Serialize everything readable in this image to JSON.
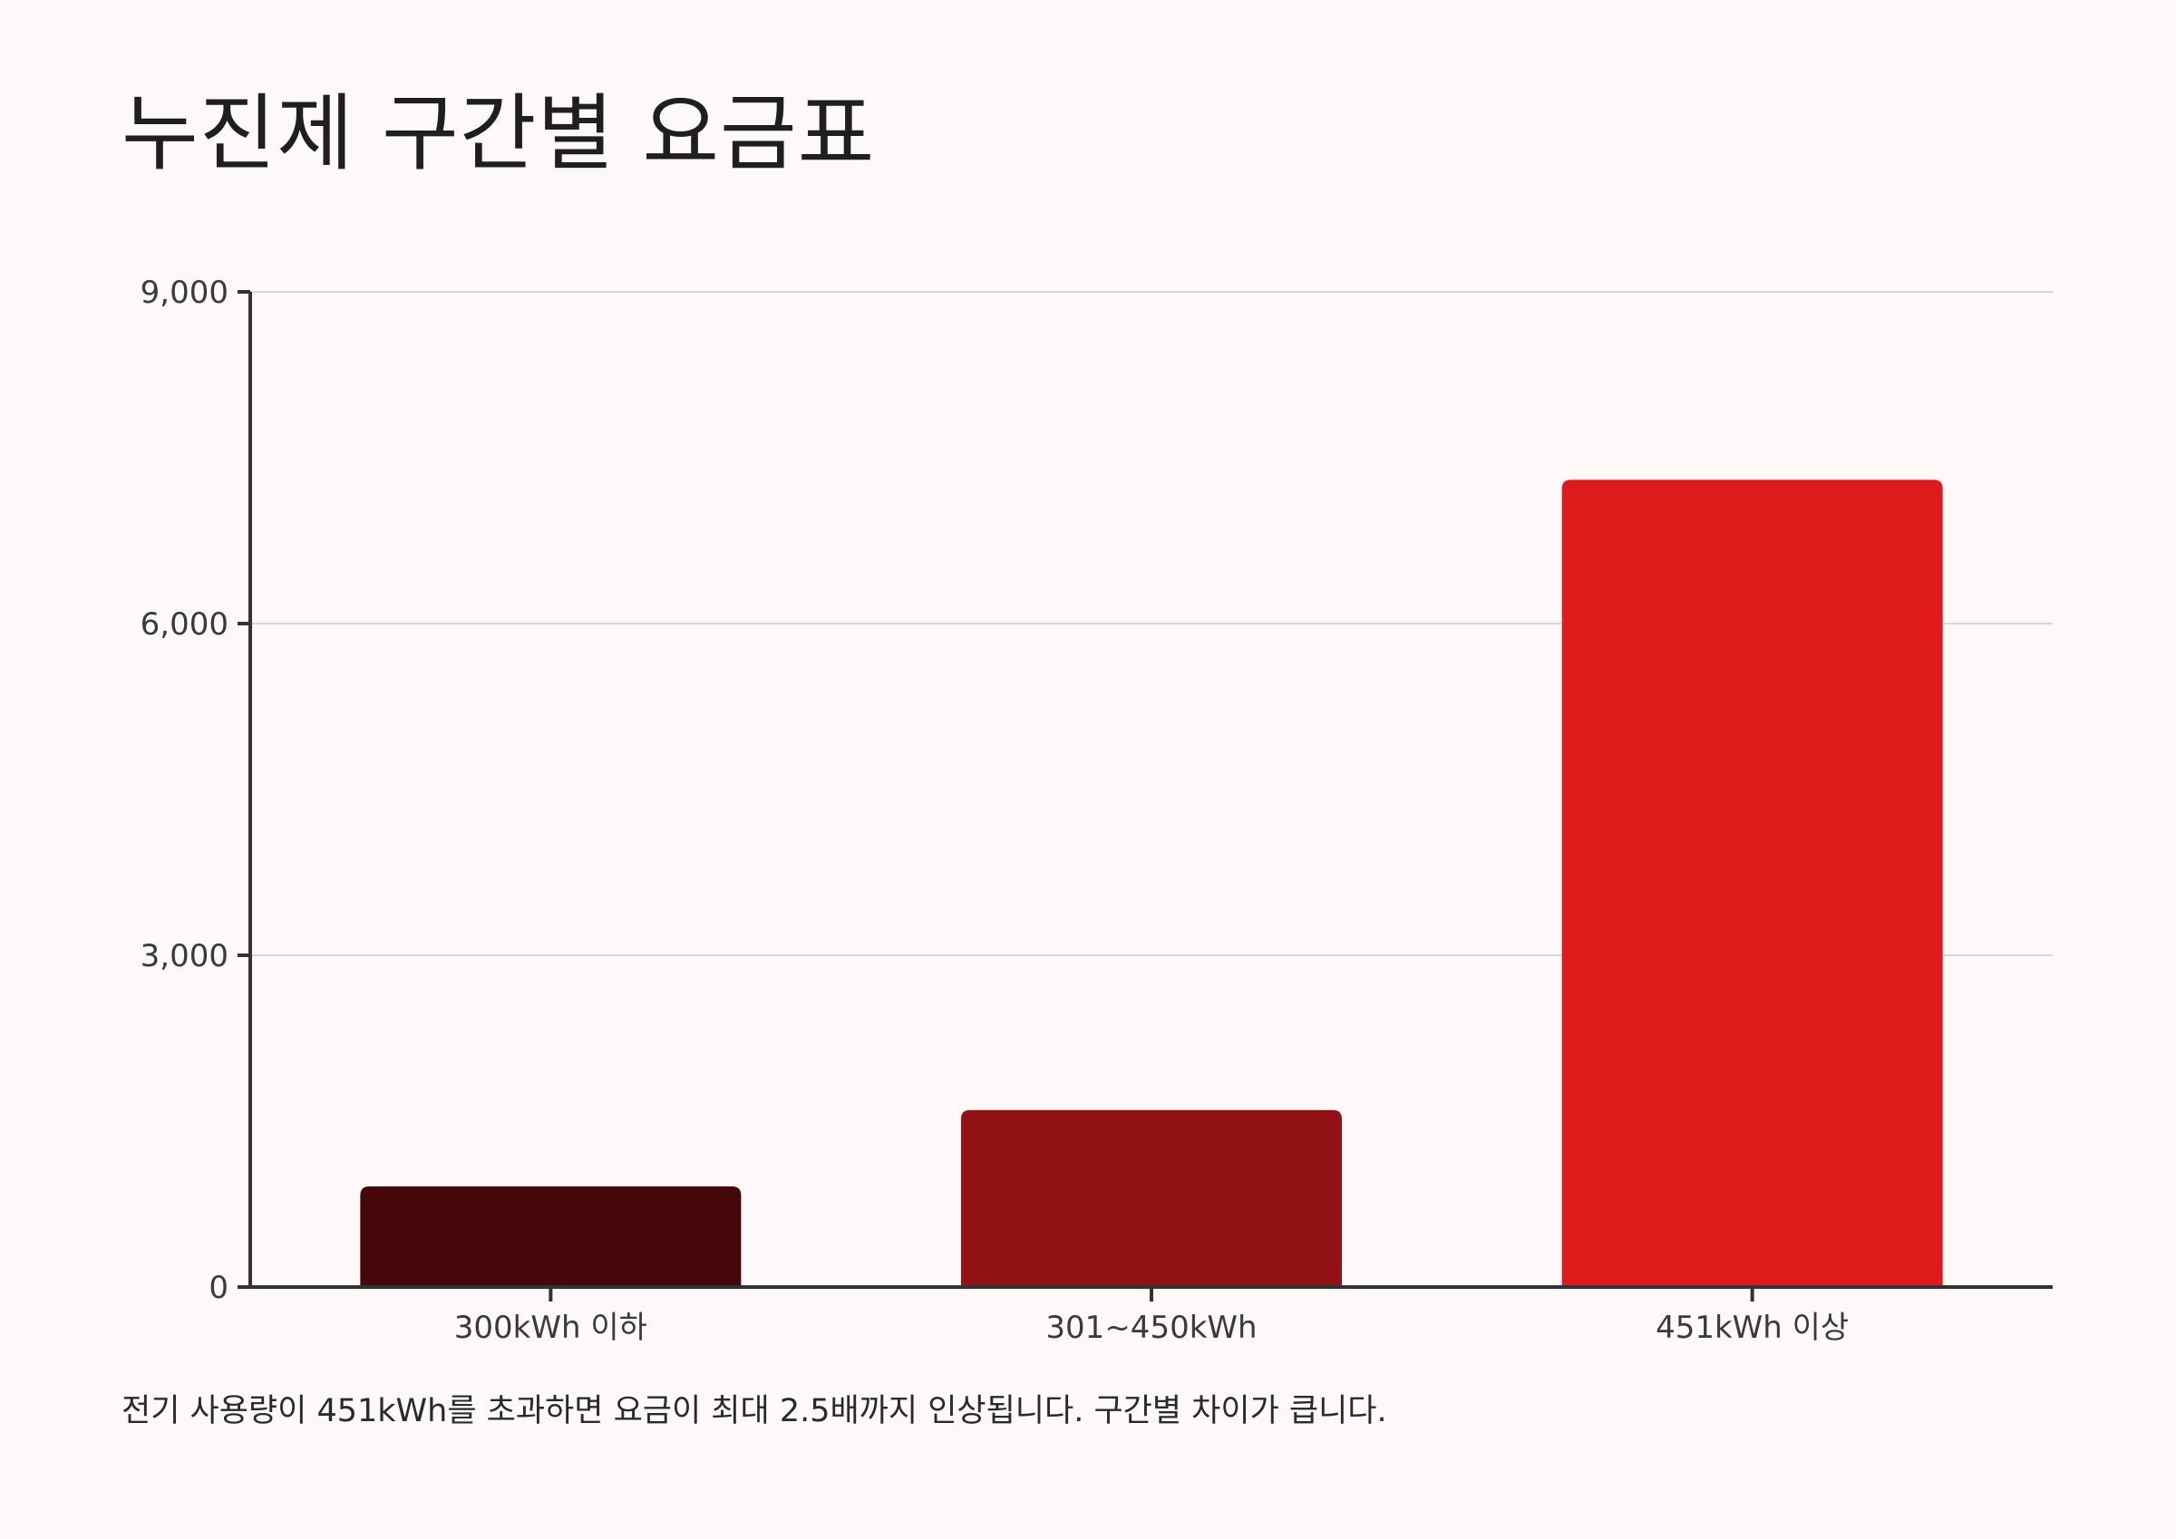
{
  "page": {
    "title": "누진제 구간별 요금표",
    "caption": "전기 사용량이 451kWh를 초과하면 요금이 최대 2.5배까지 인상됩니다. 구간별 차이가 큽니다."
  },
  "colors": {
    "background": "#fcf9f8",
    "axis": "#333333",
    "grid": "#d6d6d6",
    "bars": [
      "#450709",
      "#921115",
      "#df1a1a"
    ]
  },
  "chart_data": {
    "type": "bar",
    "title": "누진제 구간별 요금표",
    "xlabel": "",
    "ylabel": "",
    "categories": [
      "300kWh 이하",
      "301~450kWh",
      "451kWh 이상"
    ],
    "values": [
      910,
      1600,
      7300
    ],
    "ylim": [
      0,
      9000
    ],
    "yticks": [
      0,
      3000,
      6000,
      9000
    ],
    "ytick_labels": [
      "0",
      "3,000",
      "6,000",
      "9,000"
    ],
    "grid": true,
    "legend": "none"
  }
}
